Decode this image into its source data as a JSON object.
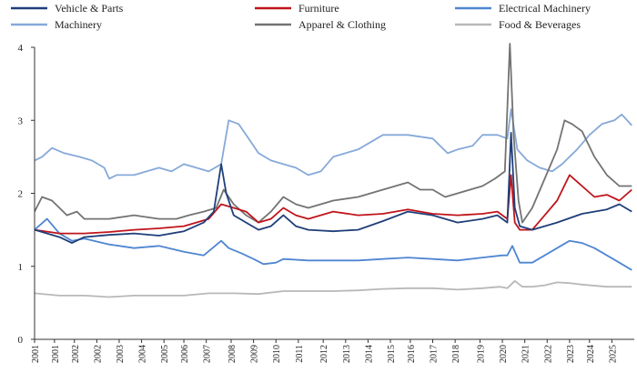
{
  "chart_data": {
    "type": "line",
    "title": "",
    "xlabel": "",
    "ylabel": "",
    "ylim": [
      0,
      4
    ],
    "y_ticks": [
      "0",
      "1",
      "2",
      "3",
      "4"
    ],
    "x_range": [
      2001.0,
      2025.1
    ],
    "x_tick_labels": [
      "2001",
      "2001",
      "2002",
      "2002",
      "2003",
      "2004",
      "2005",
      "2006",
      "2007",
      "2008",
      "2009",
      "2010",
      "2011",
      "2012",
      "2013",
      "2014",
      "2015",
      "2016",
      "2017",
      "2018",
      "2019",
      "2020",
      "2021",
      "2022",
      "2023",
      "2024",
      "2025"
    ],
    "x_tick_positions": [
      2001.0,
      2001.8,
      2002.6,
      2003.5,
      2004.4,
      2005.3,
      2006.2,
      2007.0,
      2007.9,
      2008.9,
      2009.8,
      2010.7,
      2011.6,
      2012.6,
      2013.5,
      2014.4,
      2015.3,
      2016.1,
      2017.0,
      2017.9,
      2018.9,
      2019.8,
      2020.7,
      2021.6,
      2022.5,
      2023.3,
      2024.2
    ],
    "grid": false,
    "legend_position": "top",
    "series": [
      {
        "name": "Vehicle & Parts",
        "color": "#1f3f7a",
        "x": [
          2001.0,
          2001.5,
          2002.0,
          2002.5,
          2003.0,
          2004.0,
          2005.0,
          2006.0,
          2007.0,
          2007.8,
          2008.2,
          2008.5,
          2008.7,
          2009.0,
          2009.5,
          2010.0,
          2010.5,
          2011.0,
          2011.5,
          2012.0,
          2013.0,
          2014.0,
          2015.0,
          2016.0,
          2017.0,
          2018.0,
          2019.0,
          2019.6,
          2020.0,
          2020.15,
          2020.3,
          2020.5,
          2021.0,
          2021.5,
          2022.0,
          2023.0,
          2024.0,
          2024.5,
          2025.0
        ],
        "y": [
          1.5,
          1.45,
          1.4,
          1.32,
          1.4,
          1.43,
          1.45,
          1.42,
          1.48,
          1.6,
          1.75,
          2.4,
          2.0,
          1.7,
          1.6,
          1.5,
          1.55,
          1.7,
          1.55,
          1.5,
          1.48,
          1.5,
          1.62,
          1.75,
          1.7,
          1.6,
          1.65,
          1.7,
          1.6,
          2.83,
          1.8,
          1.55,
          1.5,
          1.55,
          1.6,
          1.72,
          1.78,
          1.85,
          1.75
        ]
      },
      {
        "name": "Furniture",
        "color": "#c0141b",
        "x": [
          2001.0,
          2002.0,
          2003.0,
          2004.0,
          2005.0,
          2006.0,
          2007.0,
          2008.0,
          2008.5,
          2009.0,
          2009.5,
          2010.0,
          2010.5,
          2011.0,
          2011.5,
          2012.0,
          2013.0,
          2014.0,
          2015.0,
          2016.0,
          2017.0,
          2018.0,
          2019.0,
          2019.6,
          2020.0,
          2020.15,
          2020.3,
          2020.5,
          2021.0,
          2021.5,
          2022.0,
          2022.5,
          2023.0,
          2023.5,
          2024.0,
          2024.5,
          2025.0
        ],
        "y": [
          1.5,
          1.45,
          1.45,
          1.47,
          1.5,
          1.52,
          1.55,
          1.65,
          1.85,
          1.8,
          1.75,
          1.6,
          1.65,
          1.8,
          1.7,
          1.65,
          1.75,
          1.7,
          1.72,
          1.78,
          1.72,
          1.7,
          1.72,
          1.75,
          1.65,
          2.25,
          1.6,
          1.5,
          1.5,
          1.7,
          1.9,
          2.25,
          2.1,
          1.95,
          1.98,
          1.9,
          2.05
        ]
      },
      {
        "name": "Electrical Machinery",
        "color": "#4f86d1",
        "x": [
          2001.0,
          2001.5,
          2002.0,
          2002.5,
          2003.0,
          2004.0,
          2005.0,
          2006.0,
          2007.0,
          2007.8,
          2008.5,
          2008.8,
          2009.3,
          2009.8,
          2010.2,
          2010.7,
          2011.0,
          2012.0,
          2013.0,
          2014.0,
          2015.0,
          2016.0,
          2017.0,
          2018.0,
          2019.0,
          2019.8,
          2020.0,
          2020.2,
          2020.5,
          2021.0,
          2021.5,
          2022.0,
          2022.5,
          2023.0,
          2023.5,
          2024.0,
          2024.5,
          2025.0
        ],
        "y": [
          1.5,
          1.65,
          1.45,
          1.35,
          1.38,
          1.3,
          1.25,
          1.28,
          1.2,
          1.15,
          1.35,
          1.25,
          1.18,
          1.1,
          1.03,
          1.05,
          1.1,
          1.08,
          1.08,
          1.08,
          1.1,
          1.12,
          1.1,
          1.08,
          1.12,
          1.15,
          1.15,
          1.28,
          1.05,
          1.05,
          1.15,
          1.25,
          1.35,
          1.32,
          1.25,
          1.15,
          1.05,
          0.95
        ]
      },
      {
        "name": "Machinery",
        "color": "#86a9d9",
        "x": [
          2001.0,
          2001.3,
          2001.7,
          2002.2,
          2002.8,
          2003.3,
          2003.8,
          2004.0,
          2004.3,
          2005.0,
          2005.5,
          2006.0,
          2006.5,
          2007.0,
          2007.5,
          2008.0,
          2008.5,
          2008.8,
          2009.2,
          2009.6,
          2010.0,
          2010.5,
          2011.0,
          2011.5,
          2012.0,
          2012.5,
          2013.0,
          2014.0,
          2015.0,
          2016.0,
          2017.0,
          2017.6,
          2018.0,
          2018.6,
          2019.0,
          2019.6,
          2020.0,
          2020.15,
          2020.4,
          2020.8,
          2021.3,
          2021.8,
          2022.2,
          2022.8,
          2023.3,
          2023.8,
          2024.3,
          2024.6,
          2025.0
        ],
        "y": [
          2.45,
          2.5,
          2.62,
          2.55,
          2.5,
          2.45,
          2.35,
          2.2,
          2.25,
          2.25,
          2.3,
          2.35,
          2.3,
          2.4,
          2.35,
          2.3,
          2.4,
          3.0,
          2.95,
          2.75,
          2.55,
          2.45,
          2.4,
          2.35,
          2.25,
          2.3,
          2.5,
          2.6,
          2.8,
          2.8,
          2.75,
          2.55,
          2.6,
          2.65,
          2.8,
          2.8,
          2.75,
          3.15,
          2.6,
          2.45,
          2.35,
          2.3,
          2.4,
          2.6,
          2.8,
          2.95,
          3.0,
          3.08,
          2.93
        ]
      },
      {
        "name": "Apparel & Clothing",
        "color": "#737373",
        "x": [
          2001.0,
          2001.3,
          2001.7,
          2002.0,
          2002.3,
          2002.7,
          2003.0,
          2004.0,
          2005.0,
          2006.0,
          2006.7,
          2007.2,
          2007.8,
          2008.3,
          2008.6,
          2009.0,
          2009.5,
          2010.0,
          2010.5,
          2011.0,
          2011.5,
          2012.0,
          2012.5,
          2013.0,
          2014.0,
          2015.0,
          2016.0,
          2016.5,
          2017.0,
          2017.5,
          2018.0,
          2018.5,
          2019.0,
          2019.5,
          2019.9,
          2020.1,
          2020.25,
          2020.45,
          2020.6,
          2021.0,
          2021.5,
          2022.0,
          2022.3,
          2022.6,
          2023.0,
          2023.5,
          2024.0,
          2024.5,
          2025.0
        ],
        "y": [
          1.75,
          1.95,
          1.9,
          1.8,
          1.7,
          1.75,
          1.65,
          1.65,
          1.7,
          1.65,
          1.65,
          1.7,
          1.75,
          1.8,
          2.05,
          1.85,
          1.7,
          1.6,
          1.75,
          1.95,
          1.85,
          1.8,
          1.85,
          1.9,
          1.95,
          2.05,
          2.15,
          2.05,
          2.05,
          1.95,
          2.0,
          2.05,
          2.1,
          2.2,
          2.3,
          4.1,
          2.8,
          1.9,
          1.6,
          1.8,
          2.2,
          2.6,
          3.0,
          2.95,
          2.85,
          2.5,
          2.25,
          2.1,
          2.1
        ]
      },
      {
        "name": "Food & Beverages",
        "color": "#b8b8b8",
        "x": [
          2001.0,
          2002.0,
          2003.0,
          2004.0,
          2005.0,
          2006.0,
          2007.0,
          2008.0,
          2009.0,
          2010.0,
          2011.0,
          2012.0,
          2013.0,
          2014.0,
          2015.0,
          2016.0,
          2017.0,
          2018.0,
          2019.0,
          2019.7,
          2020.0,
          2020.3,
          2020.6,
          2021.0,
          2021.5,
          2022.0,
          2022.5,
          2023.0,
          2024.0,
          2025.0
        ],
        "y": [
          0.63,
          0.6,
          0.6,
          0.58,
          0.6,
          0.6,
          0.6,
          0.63,
          0.63,
          0.62,
          0.66,
          0.66,
          0.66,
          0.67,
          0.69,
          0.7,
          0.7,
          0.68,
          0.7,
          0.72,
          0.7,
          0.8,
          0.72,
          0.72,
          0.74,
          0.78,
          0.77,
          0.75,
          0.72,
          0.72
        ]
      }
    ]
  }
}
